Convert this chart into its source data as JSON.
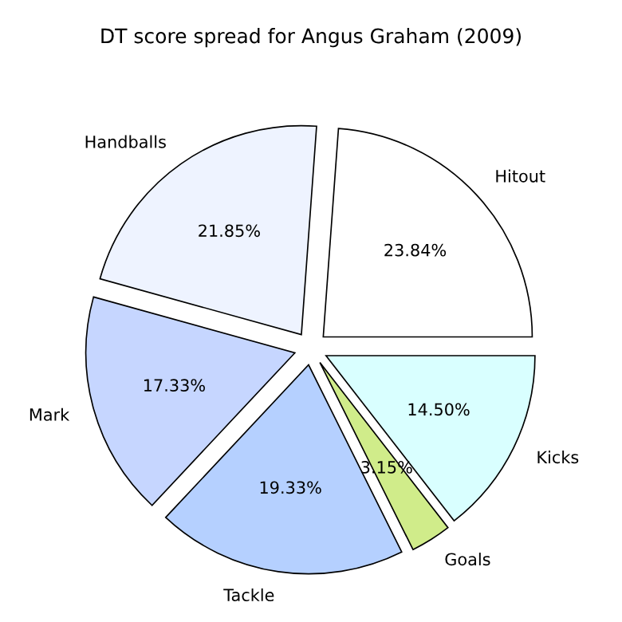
{
  "chart_data": {
    "type": "pie",
    "title": "DT score spread for Angus Graham (2009)",
    "categories": [
      "Hitout",
      "Handballs",
      "Mark",
      "Tackle",
      "Goals",
      "Kicks"
    ],
    "values": [
      23.84,
      21.85,
      17.33,
      19.33,
      3.15,
      14.5
    ],
    "value_labels": [
      "23.84%",
      "21.85%",
      "17.33%",
      "19.33%",
      "3.15%",
      "14.50%"
    ],
    "colors": [
      "#ffffff",
      "#eef3ff",
      "#c6d6ff",
      "#b5d0ff",
      "#d0ec8a",
      "#d9ffff"
    ],
    "legend": false
  }
}
